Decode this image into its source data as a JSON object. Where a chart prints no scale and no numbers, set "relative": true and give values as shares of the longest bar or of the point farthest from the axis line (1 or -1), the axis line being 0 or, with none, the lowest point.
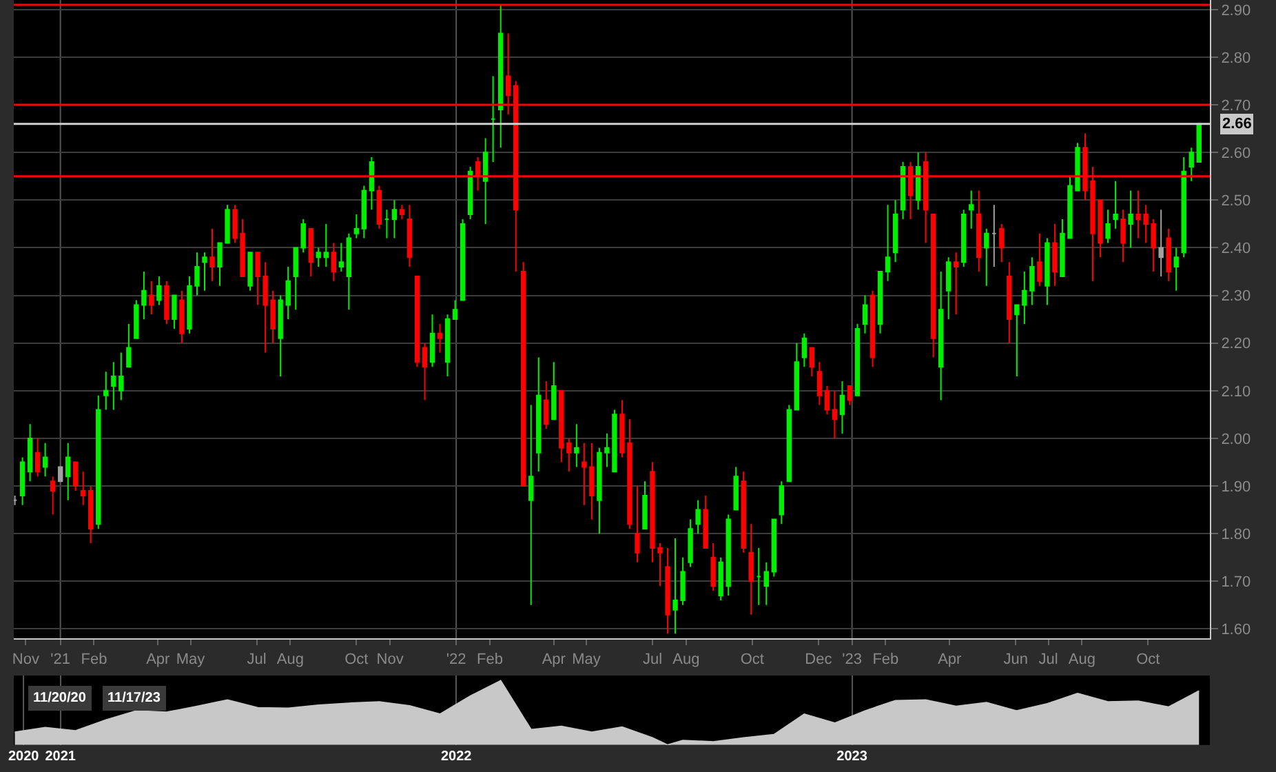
{
  "chart_data": [
    {
      "type": "candlestick",
      "x": [
        "2020-11-20",
        "2020-11-27",
        "2020-12-04",
        "2020-12-11",
        "2020-12-18",
        "2020-12-25",
        "2021-01-01",
        "2021-01-08",
        "2021-01-15",
        "2021-01-22",
        "2021-01-29",
        "2021-02-05",
        "2021-02-12",
        "2021-02-19",
        "2021-02-26",
        "2021-03-05",
        "2021-03-12",
        "2021-03-19",
        "2021-03-26",
        "2021-04-02",
        "2021-04-09",
        "2021-04-16",
        "2021-04-23",
        "2021-04-30",
        "2021-05-07",
        "2021-05-14",
        "2021-05-21",
        "2021-05-28",
        "2021-06-04",
        "2021-06-11",
        "2021-06-18",
        "2021-06-25",
        "2021-07-02",
        "2021-07-09",
        "2021-07-16",
        "2021-07-23",
        "2021-07-30",
        "2021-08-06",
        "2021-08-13",
        "2021-08-20",
        "2021-08-27",
        "2021-09-03",
        "2021-09-10",
        "2021-09-17",
        "2021-09-24",
        "2021-10-01",
        "2021-10-08",
        "2021-10-15",
        "2021-10-22",
        "2021-10-29",
        "2021-11-05",
        "2021-11-12",
        "2021-11-19",
        "2021-11-26",
        "2021-12-03",
        "2021-12-10",
        "2021-12-17",
        "2021-12-24",
        "2021-12-31",
        "2022-01-07",
        "2022-01-14",
        "2022-01-21",
        "2022-01-28",
        "2022-02-04",
        "2022-02-11",
        "2022-02-18",
        "2022-02-25",
        "2022-03-04",
        "2022-03-11",
        "2022-03-18",
        "2022-03-25",
        "2022-04-01",
        "2022-04-08",
        "2022-04-15",
        "2022-04-22",
        "2022-04-29",
        "2022-05-06",
        "2022-05-13",
        "2022-05-20",
        "2022-05-27",
        "2022-06-03",
        "2022-06-10",
        "2022-06-17",
        "2022-06-24",
        "2022-07-01",
        "2022-07-08",
        "2022-07-15",
        "2022-07-22",
        "2022-07-29",
        "2022-08-05",
        "2022-08-12",
        "2022-08-19",
        "2022-08-26",
        "2022-09-02",
        "2022-09-09",
        "2022-09-16",
        "2022-09-23",
        "2022-09-30",
        "2022-10-07",
        "2022-10-14",
        "2022-10-21",
        "2022-10-28",
        "2022-11-04",
        "2022-11-11",
        "2022-11-18",
        "2022-11-25",
        "2022-12-02",
        "2022-12-09",
        "2022-12-16",
        "2022-12-23",
        "2022-12-30",
        "2023-01-06",
        "2023-01-13",
        "2023-01-20",
        "2023-01-27",
        "2023-02-03",
        "2023-02-10",
        "2023-02-17",
        "2023-02-24",
        "2023-03-03",
        "2023-03-10",
        "2023-03-17",
        "2023-03-24",
        "2023-03-31",
        "2023-04-07",
        "2023-04-14",
        "2023-04-21",
        "2023-04-28",
        "2023-05-05",
        "2023-05-12",
        "2023-05-19",
        "2023-05-26",
        "2023-06-02",
        "2023-06-09",
        "2023-06-16",
        "2023-06-23",
        "2023-06-30",
        "2023-07-07",
        "2023-07-14",
        "2023-07-21",
        "2023-07-28",
        "2023-08-04",
        "2023-08-11",
        "2023-08-18",
        "2023-08-25",
        "2023-09-01",
        "2023-09-08",
        "2023-09-15",
        "2023-09-22",
        "2023-09-29",
        "2023-10-06",
        "2023-10-13",
        "2023-10-20",
        "2023-10-27",
        "2023-11-03",
        "2023-11-10",
        "2023-11-17"
      ],
      "ohlc": [
        [
          1.87,
          1.88,
          1.86,
          1.87
        ],
        [
          1.88,
          1.96,
          1.86,
          1.95
        ],
        [
          1.93,
          2.03,
          1.91,
          2.0
        ],
        [
          1.97,
          2.0,
          1.92,
          1.93
        ],
        [
          1.94,
          1.99,
          1.92,
          1.96
        ],
        [
          1.91,
          1.92,
          1.84,
          1.89
        ],
        [
          1.91,
          1.94,
          1.91,
          1.94
        ],
        [
          1.92,
          1.99,
          1.87,
          1.96
        ],
        [
          1.95,
          1.95,
          1.89,
          1.9
        ],
        [
          1.89,
          1.93,
          1.86,
          1.88
        ],
        [
          1.89,
          1.9,
          1.78,
          1.81
        ],
        [
          1.82,
          2.09,
          1.81,
          2.06
        ],
        [
          2.09,
          2.14,
          2.06,
          2.1
        ],
        [
          2.11,
          2.16,
          2.06,
          2.13
        ],
        [
          2.1,
          2.18,
          2.08,
          2.13
        ],
        [
          2.15,
          2.24,
          2.15,
          2.19
        ],
        [
          2.21,
          2.29,
          2.21,
          2.28
        ],
        [
          2.28,
          2.35,
          2.25,
          2.31
        ],
        [
          2.3,
          2.33,
          2.26,
          2.28
        ],
        [
          2.29,
          2.34,
          2.28,
          2.32
        ],
        [
          2.32,
          2.33,
          2.24,
          2.25
        ],
        [
          2.25,
          2.3,
          2.23,
          2.3
        ],
        [
          2.29,
          2.31,
          2.2,
          2.22
        ],
        [
          2.23,
          2.34,
          2.22,
          2.32
        ],
        [
          2.32,
          2.39,
          2.3,
          2.36
        ],
        [
          2.37,
          2.39,
          2.31,
          2.38
        ],
        [
          2.38,
          2.44,
          2.33,
          2.36
        ],
        [
          2.36,
          2.41,
          2.32,
          2.41
        ],
        [
          2.41,
          2.49,
          2.41,
          2.48
        ],
        [
          2.48,
          2.49,
          2.41,
          2.42
        ],
        [
          2.43,
          2.46,
          2.34,
          2.34
        ],
        [
          2.32,
          2.39,
          2.31,
          2.39
        ],
        [
          2.39,
          2.39,
          2.28,
          2.34
        ],
        [
          2.34,
          2.37,
          2.18,
          2.28
        ],
        [
          2.29,
          2.31,
          2.2,
          2.23
        ],
        [
          2.21,
          2.3,
          2.13,
          2.29
        ],
        [
          2.28,
          2.36,
          2.25,
          2.33
        ],
        [
          2.34,
          2.4,
          2.27,
          2.4
        ],
        [
          2.4,
          2.46,
          2.39,
          2.45
        ],
        [
          2.44,
          2.44,
          2.34,
          2.37
        ],
        [
          2.38,
          2.4,
          2.36,
          2.39
        ],
        [
          2.38,
          2.45,
          2.36,
          2.39
        ],
        [
          2.39,
          2.41,
          2.33,
          2.35
        ],
        [
          2.36,
          2.41,
          2.35,
          2.37
        ],
        [
          2.34,
          2.43,
          2.27,
          2.42
        ],
        [
          2.43,
          2.47,
          2.42,
          2.44
        ],
        [
          2.44,
          2.53,
          2.42,
          2.52
        ],
        [
          2.52,
          2.59,
          2.48,
          2.58
        ],
        [
          2.52,
          2.53,
          2.44,
          2.45
        ],
        [
          2.46,
          2.48,
          2.42,
          2.46
        ],
        [
          2.46,
          2.5,
          2.42,
          2.48
        ],
        [
          2.48,
          2.49,
          2.46,
          2.47
        ],
        [
          2.46,
          2.49,
          2.36,
          2.38
        ],
        [
          2.34,
          2.34,
          2.15,
          2.16
        ],
        [
          2.19,
          2.2,
          2.08,
          2.15
        ],
        [
          2.16,
          2.26,
          2.15,
          2.22
        ],
        [
          2.22,
          2.24,
          2.18,
          2.21
        ],
        [
          2.16,
          2.26,
          2.13,
          2.25
        ],
        [
          2.25,
          2.29,
          2.25,
          2.27
        ],
        [
          2.29,
          2.46,
          2.29,
          2.45
        ],
        [
          2.47,
          2.57,
          2.46,
          2.56
        ],
        [
          2.58,
          2.59,
          2.52,
          2.55
        ],
        [
          2.54,
          2.63,
          2.45,
          2.6
        ],
        [
          2.67,
          2.76,
          2.58,
          2.67
        ],
        [
          2.69,
          2.91,
          2.61,
          2.85
        ],
        [
          2.76,
          2.85,
          2.68,
          2.72
        ],
        [
          2.74,
          2.75,
          2.35,
          2.48
        ],
        [
          2.35,
          2.37,
          1.9,
          1.9
        ],
        [
          1.87,
          2.07,
          1.65,
          1.92
        ],
        [
          1.97,
          2.17,
          1.93,
          2.09
        ],
        [
          2.08,
          2.12,
          2.02,
          2.03
        ],
        [
          2.04,
          2.16,
          2.04,
          2.11
        ],
        [
          2.1,
          2.1,
          1.95,
          1.98
        ],
        [
          1.99,
          2.0,
          1.93,
          1.97
        ],
        [
          1.97,
          2.03,
          1.94,
          1.98
        ],
        [
          1.95,
          1.99,
          1.86,
          1.94
        ],
        [
          1.94,
          1.99,
          1.83,
          1.88
        ],
        [
          1.87,
          1.98,
          1.8,
          1.97
        ],
        [
          1.97,
          2.01,
          1.94,
          1.98
        ],
        [
          1.93,
          2.06,
          1.93,
          2.05
        ],
        [
          2.05,
          2.08,
          1.96,
          1.97
        ],
        [
          1.99,
          2.04,
          1.81,
          1.82
        ],
        [
          1.8,
          1.9,
          1.74,
          1.76
        ],
        [
          1.81,
          1.91,
          1.81,
          1.88
        ],
        [
          1.93,
          1.95,
          1.74,
          1.77
        ],
        [
          1.77,
          1.78,
          1.69,
          1.76
        ],
        [
          1.73,
          1.77,
          1.59,
          1.63
        ],
        [
          1.64,
          1.79,
          1.59,
          1.66
        ],
        [
          1.66,
          1.75,
          1.65,
          1.72
        ],
        [
          1.74,
          1.83,
          1.73,
          1.81
        ],
        [
          1.82,
          1.87,
          1.8,
          1.85
        ],
        [
          1.85,
          1.88,
          1.77,
          1.77
        ],
        [
          1.75,
          1.78,
          1.68,
          1.69
        ],
        [
          1.67,
          1.75,
          1.66,
          1.74
        ],
        [
          1.69,
          1.84,
          1.67,
          1.83
        ],
        [
          1.85,
          1.94,
          1.85,
          1.92
        ],
        [
          1.91,
          1.93,
          1.76,
          1.77
        ],
        [
          1.76,
          1.82,
          1.63,
          1.7
        ],
        [
          1.71,
          1.77,
          1.65,
          1.71
        ],
        [
          1.69,
          1.74,
          1.65,
          1.72
        ],
        [
          1.72,
          1.83,
          1.71,
          1.83
        ],
        [
          1.84,
          1.91,
          1.82,
          1.9
        ],
        [
          1.91,
          2.07,
          1.91,
          2.06
        ],
        [
          2.06,
          2.2,
          2.06,
          2.16
        ],
        [
          2.17,
          2.22,
          2.15,
          2.21
        ],
        [
          2.19,
          2.19,
          2.13,
          2.15
        ],
        [
          2.14,
          2.16,
          2.07,
          2.09
        ],
        [
          2.1,
          2.11,
          2.05,
          2.06
        ],
        [
          2.06,
          2.1,
          2.0,
          2.04
        ],
        [
          2.05,
          2.12,
          2.01,
          2.09
        ],
        [
          2.11,
          2.11,
          2.07,
          2.08
        ],
        [
          2.09,
          2.24,
          2.09,
          2.23
        ],
        [
          2.24,
          2.3,
          2.22,
          2.28
        ],
        [
          2.3,
          2.31,
          2.15,
          2.17
        ],
        [
          2.24,
          2.35,
          2.22,
          2.35
        ],
        [
          2.35,
          2.49,
          2.33,
          2.38
        ],
        [
          2.39,
          2.5,
          2.37,
          2.47
        ],
        [
          2.48,
          2.58,
          2.46,
          2.57
        ],
        [
          2.57,
          2.58,
          2.46,
          2.51
        ],
        [
          2.5,
          2.6,
          2.48,
          2.57
        ],
        [
          2.58,
          2.6,
          2.41,
          2.48
        ],
        [
          2.47,
          2.47,
          2.17,
          2.21
        ],
        [
          2.15,
          2.35,
          2.08,
          2.27
        ],
        [
          2.31,
          2.38,
          2.25,
          2.37
        ],
        [
          2.37,
          2.39,
          2.26,
          2.36
        ],
        [
          2.37,
          2.48,
          2.36,
          2.47
        ],
        [
          2.48,
          2.52,
          2.44,
          2.49
        ],
        [
          2.47,
          2.52,
          2.35,
          2.38
        ],
        [
          2.4,
          2.44,
          2.32,
          2.43
        ],
        [
          2.43,
          2.49,
          2.36,
          2.43
        ],
        [
          2.44,
          2.45,
          2.37,
          2.4
        ],
        [
          2.34,
          2.37,
          2.2,
          2.25
        ],
        [
          2.26,
          2.28,
          2.13,
          2.28
        ],
        [
          2.28,
          2.35,
          2.24,
          2.31
        ],
        [
          2.31,
          2.38,
          2.28,
          2.36
        ],
        [
          2.37,
          2.43,
          2.32,
          2.33
        ],
        [
          2.32,
          2.42,
          2.28,
          2.41
        ],
        [
          2.41,
          2.45,
          2.32,
          2.35
        ],
        [
          2.34,
          2.46,
          2.34,
          2.43
        ],
        [
          2.42,
          2.55,
          2.42,
          2.53
        ],
        [
          2.52,
          2.62,
          2.52,
          2.61
        ],
        [
          2.61,
          2.64,
          2.5,
          2.52
        ],
        [
          2.54,
          2.57,
          2.33,
          2.43
        ],
        [
          2.5,
          2.5,
          2.38,
          2.41
        ],
        [
          2.42,
          2.48,
          2.41,
          2.45
        ],
        [
          2.46,
          2.54,
          2.44,
          2.47
        ],
        [
          2.46,
          2.48,
          2.37,
          2.41
        ],
        [
          2.45,
          2.52,
          2.4,
          2.47
        ],
        [
          2.47,
          2.52,
          2.42,
          2.46
        ],
        [
          2.47,
          2.49,
          2.41,
          2.45
        ],
        [
          2.45,
          2.46,
          2.35,
          2.4
        ],
        [
          2.38,
          2.48,
          2.34,
          2.4
        ],
        [
          2.42,
          2.44,
          2.33,
          2.35
        ],
        [
          2.36,
          2.4,
          2.31,
          2.38
        ],
        [
          2.39,
          2.59,
          2.38,
          2.56
        ],
        [
          2.57,
          2.61,
          2.54,
          2.6
        ],
        [
          2.58,
          2.66,
          2.58,
          2.66
        ]
      ],
      "colors": [
        "#a0a0a0",
        "#00ee00",
        "#00ee00",
        "#ff0000",
        "#00ee00",
        "#ff0000",
        "#a0a0a0",
        "#00ee00",
        "#ff0000",
        "#ff0000",
        "#ff0000",
        "#00ee00",
        "#00ee00",
        "#00ee00",
        "#00ee00",
        "#00ee00",
        "#00ee00",
        "#00ee00",
        "#ff0000",
        "#00ee00",
        "#ff0000",
        "#00ee00",
        "#ff0000",
        "#00ee00",
        "#00ee00",
        "#00ee00",
        "#ff0000",
        "#00ee00",
        "#00ee00",
        "#ff0000",
        "#ff0000",
        "#00ee00",
        "#ff0000",
        "#ff0000",
        "#ff0000",
        "#00ee00",
        "#00ee00",
        "#00ee00",
        "#00ee00",
        "#ff0000",
        "#00ee00",
        "#00ee00",
        "#ff0000",
        "#00ee00",
        "#00ee00",
        "#00ee00",
        "#00ee00",
        "#00ee00",
        "#ff0000",
        "#00ee00",
        "#00ee00",
        "#ff0000",
        "#ff0000",
        "#ff0000",
        "#ff0000",
        "#00ee00",
        "#ff0000",
        "#00ee00",
        "#00ee00",
        "#00ee00",
        "#00ee00",
        "#ff0000",
        "#00ee00",
        "#00ee00",
        "#00ee00",
        "#ff0000",
        "#ff0000",
        "#ff0000",
        "#00ee00",
        "#00ee00",
        "#ff0000",
        "#00ee00",
        "#ff0000",
        "#ff0000",
        "#00ee00",
        "#ff0000",
        "#ff0000",
        "#00ee00",
        "#00ee00",
        "#00ee00",
        "#ff0000",
        "#ff0000",
        "#ff0000",
        "#00ee00",
        "#ff0000",
        "#ff0000",
        "#ff0000",
        "#00ee00",
        "#00ee00",
        "#00ee00",
        "#00ee00",
        "#ff0000",
        "#ff0000",
        "#00ee00",
        "#00ee00",
        "#00ee00",
        "#ff0000",
        "#ff0000",
        "#00ee00",
        "#00ee00",
        "#00ee00",
        "#00ee00",
        "#00ee00",
        "#00ee00",
        "#00ee00",
        "#ff0000",
        "#ff0000",
        "#ff0000",
        "#ff0000",
        "#00ee00",
        "#ff0000",
        "#00ee00",
        "#00ee00",
        "#ff0000",
        "#00ee00",
        "#00ee00",
        "#00ee00",
        "#00ee00",
        "#ff0000",
        "#00ee00",
        "#ff0000",
        "#ff0000",
        "#00ee00",
        "#00ee00",
        "#ff0000",
        "#00ee00",
        "#00ee00",
        "#ff0000",
        "#00ee00",
        "#a0a0a0",
        "#ff0000",
        "#ff0000",
        "#00ee00",
        "#00ee00",
        "#00ee00",
        "#ff0000",
        "#00ee00",
        "#ff0000",
        "#00ee00",
        "#00ee00",
        "#00ee00",
        "#ff0000",
        "#ff0000",
        "#ff0000",
        "#00ee00",
        "#00ee00",
        "#ff0000",
        "#00ee00",
        "#ff0000",
        "#ff0000",
        "#ff0000",
        "#a0a0a0",
        "#ff0000",
        "#00ee00",
        "#00ee00",
        "#00ee00",
        "#00ee00"
      ],
      "xlim": [
        "2020-11-19",
        "2023-11-27"
      ],
      "xticks": [
        {
          "value": "2020-11-30",
          "label": "Nov"
        },
        {
          "value": "2021-01-01",
          "label": "'21"
        },
        {
          "value": "2021-02-01",
          "label": "Feb"
        },
        {
          "value": "2021-04-01",
          "label": "Apr"
        },
        {
          "value": "2021-05-01",
          "label": "May"
        },
        {
          "value": "2021-07-01",
          "label": "Jul"
        },
        {
          "value": "2021-08-01",
          "label": "Aug"
        },
        {
          "value": "2021-10-01",
          "label": "Oct"
        },
        {
          "value": "2021-11-01",
          "label": "Nov"
        },
        {
          "value": "2022-01-01",
          "label": "'22"
        },
        {
          "value": "2022-02-01",
          "label": "Feb"
        },
        {
          "value": "2022-04-01",
          "label": "Apr"
        },
        {
          "value": "2022-05-01",
          "label": "May"
        },
        {
          "value": "2022-07-01",
          "label": "Jul"
        },
        {
          "value": "2022-08-01",
          "label": "Aug"
        },
        {
          "value": "2022-10-01",
          "label": "Oct"
        },
        {
          "value": "2022-12-01",
          "label": "Dec"
        },
        {
          "value": "2023-01-01",
          "label": "'23"
        },
        {
          "value": "2023-02-01",
          "label": "Feb"
        },
        {
          "value": "2023-04-01",
          "label": "Apr"
        },
        {
          "value": "2023-06-01",
          "label": "Jun"
        },
        {
          "value": "2023-07-01",
          "label": "Jul"
        },
        {
          "value": "2023-08-01",
          "label": "Aug"
        },
        {
          "value": "2023-10-01",
          "label": "Oct"
        }
      ],
      "ylim": [
        1.58,
        2.92
      ],
      "yticks": [
        {
          "value": 1.6,
          "label": "1.60"
        },
        {
          "value": 1.7,
          "label": "1.70"
        },
        {
          "value": 1.8,
          "label": "1.80"
        },
        {
          "value": 1.9,
          "label": "1.90"
        },
        {
          "value": 2.0,
          "label": "2.00"
        },
        {
          "value": 2.1,
          "label": "2.10"
        },
        {
          "value": 2.2,
          "label": "2.20"
        },
        {
          "value": 2.3,
          "label": "2.30"
        },
        {
          "value": 2.4,
          "label": "2.40"
        },
        {
          "value": 2.5,
          "label": "2.50"
        },
        {
          "value": 2.6,
          "label": "2.60"
        },
        {
          "value": 2.7,
          "label": "2.70"
        },
        {
          "value": 2.8,
          "label": "2.80"
        },
        {
          "value": 2.9,
          "label": "2.90"
        }
      ],
      "grid": "y",
      "ref_lines": [
        {
          "axis": "y",
          "value": 2.91,
          "color": "#ff0000"
        },
        {
          "axis": "y",
          "value": 2.7,
          "color": "#ff0000"
        },
        {
          "axis": "y",
          "value": 2.55,
          "color": "#ff0000"
        },
        {
          "axis": "y",
          "value": 2.66,
          "color": "#d0d0d0",
          "label": "2.66"
        },
        {
          "axis": "x",
          "value": "2021-01-01",
          "color": "#555555"
        },
        {
          "axis": "x",
          "value": "2022-01-01",
          "color": "#555555"
        },
        {
          "axis": "x",
          "value": "2023-01-01",
          "color": "#555555"
        }
      ]
    },
    {
      "type": "area",
      "relative": true,
      "color": "#c8c8c8",
      "x": [
        "2020-11-20",
        "2020-12-18",
        "2021-01-15",
        "2021-02-12",
        "2021-03-12",
        "2021-04-09",
        "2021-05-07",
        "2021-06-04",
        "2021-07-02",
        "2021-07-30",
        "2021-08-27",
        "2021-09-24",
        "2021-10-22",
        "2021-11-19",
        "2021-12-17",
        "2022-01-14",
        "2022-02-11",
        "2022-03-11",
        "2022-04-08",
        "2022-05-06",
        "2022-06-03",
        "2022-07-01",
        "2022-07-15",
        "2022-07-29",
        "2022-08-26",
        "2022-09-23",
        "2022-10-21",
        "2022-11-18",
        "2022-12-16",
        "2023-01-13",
        "2023-02-10",
        "2023-03-10",
        "2023-04-07",
        "2023-05-05",
        "2023-06-02",
        "2023-06-30",
        "2023-07-28",
        "2023-08-25",
        "2023-09-22",
        "2023-10-20",
        "2023-11-17"
      ],
      "values": [
        0.2,
        0.27,
        0.22,
        0.39,
        0.53,
        0.51,
        0.6,
        0.7,
        0.58,
        0.57,
        0.62,
        0.65,
        0.67,
        0.61,
        0.48,
        0.76,
        1,
        0.24,
        0.29,
        0.2,
        0.28,
        0.11,
        0,
        0.07,
        0.05,
        0.11,
        0.16,
        0.48,
        0.34,
        0.53,
        0.69,
        0.7,
        0.6,
        0.66,
        0.53,
        0.64,
        0.8,
        0.67,
        0.68,
        0.59,
        0.84
      ],
      "xlim": [
        "2020-11-19",
        "2023-11-27"
      ],
      "xticks": [
        {
          "value": "2020-11-28",
          "label": "2020"
        },
        {
          "value": "2021-01-01",
          "label": "2021"
        },
        {
          "value": "2022-01-01",
          "label": "2022"
        },
        {
          "value": "2023-01-01",
          "label": "2023"
        }
      ],
      "grid": "x",
      "annotations": [
        "11/20/20",
        "11/17/23"
      ]
    }
  ]
}
